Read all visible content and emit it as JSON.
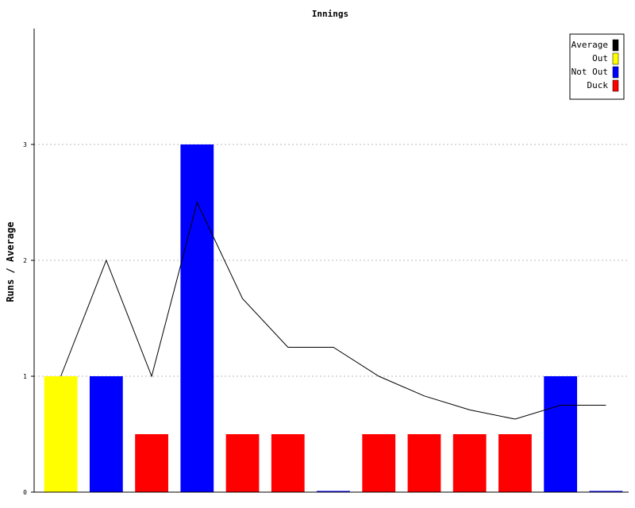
{
  "chart_data": {
    "type": "bar",
    "title": "Innings",
    "xlabel": "",
    "ylabel": "Runs / Average",
    "ylim": [
      0,
      4
    ],
    "yticks": [
      "0",
      "1",
      "2",
      "3"
    ],
    "grid": true,
    "legend_position": "top-right",
    "bar_status_colors": {
      "Out": "#ffff00",
      "Not Out": "#0000ff",
      "Duck": "#ff0000"
    },
    "legend": [
      {
        "label": "Average",
        "color": "#000000"
      },
      {
        "label": "Out",
        "color": "#ffff00"
      },
      {
        "label": "Not Out",
        "color": "#0000ff"
      },
      {
        "label": "Duck",
        "color": "#ff0000"
      }
    ],
    "bars": [
      {
        "value": 1,
        "status": "Out"
      },
      {
        "value": 1,
        "status": "Not Out"
      },
      {
        "value": 0.5,
        "status": "Duck"
      },
      {
        "value": 3,
        "status": "Not Out"
      },
      {
        "value": 0.5,
        "status": "Duck"
      },
      {
        "value": 0.5,
        "status": "Duck"
      },
      {
        "value": 0,
        "status": "Not Out"
      },
      {
        "value": 0.5,
        "status": "Duck"
      },
      {
        "value": 0.5,
        "status": "Duck"
      },
      {
        "value": 0.5,
        "status": "Duck"
      },
      {
        "value": 0.5,
        "status": "Duck"
      },
      {
        "value": 1,
        "status": "Not Out"
      },
      {
        "value": 0,
        "status": "Not Out"
      }
    ],
    "series": [
      {
        "name": "Average",
        "values": [
          1,
          2,
          1,
          2.5,
          1.67,
          1.25,
          1.25,
          1,
          0.83,
          0.71,
          0.63,
          0.75,
          0.75
        ]
      }
    ]
  }
}
